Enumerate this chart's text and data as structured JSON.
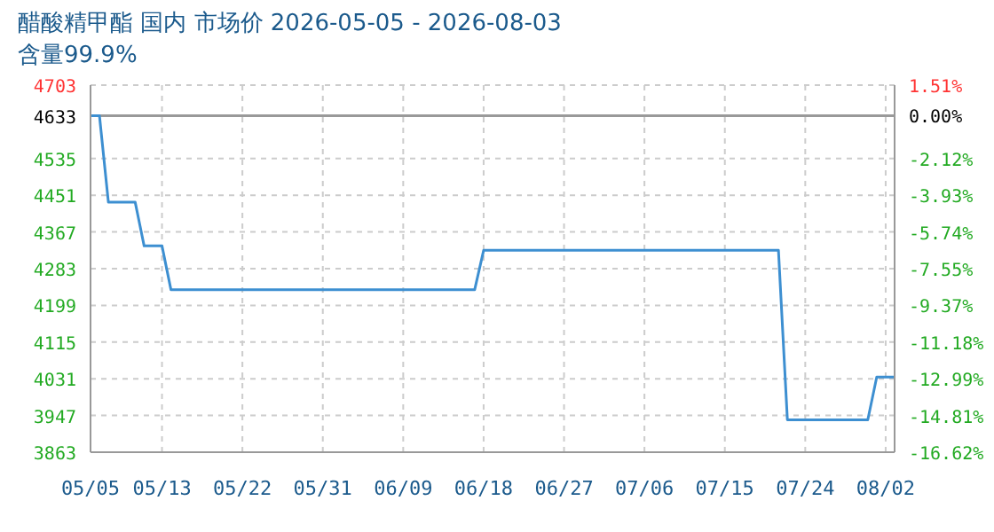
{
  "chart_data": {
    "type": "line",
    "title": "醋酸精甲酯 国内 市场价 2026-05-05 - 2026-08-03",
    "subtitle": "含量99.9%",
    "x": [
      "2026-05-05",
      "2026-05-06",
      "2026-05-07",
      "2026-05-10",
      "2026-05-11",
      "2026-05-13",
      "2026-05-14",
      "2026-06-17",
      "2026-06-18",
      "2026-07-21",
      "2026-07-22",
      "2026-07-31",
      "2026-08-01",
      "2026-08-03"
    ],
    "series": [
      {
        "color": "#3d8fd1",
        "values": [
          4633,
          4633,
          4435,
          4435,
          4335,
          4335,
          4235,
          4235,
          4325,
          4325,
          3937,
          3937,
          4035,
          4035
        ]
      }
    ],
    "xlim": [
      "2026-05-05",
      "2026-08-03"
    ],
    "xticks": [
      {
        "value": "2026-05-05",
        "label": "05/05"
      },
      {
        "value": "2026-05-13",
        "label": "05/13"
      },
      {
        "value": "2026-05-22",
        "label": "05/22"
      },
      {
        "value": "2026-05-31",
        "label": "05/31"
      },
      {
        "value": "2026-06-09",
        "label": "06/09"
      },
      {
        "value": "2026-06-18",
        "label": "06/18"
      },
      {
        "value": "2026-06-27",
        "label": "06/27"
      },
      {
        "value": "2026-07-06",
        "label": "07/06"
      },
      {
        "value": "2026-07-15",
        "label": "07/15"
      },
      {
        "value": "2026-07-24",
        "label": "07/24"
      },
      {
        "value": "2026-08-02",
        "label": "08/02"
      }
    ],
    "ylim": [
      3863,
      4703
    ],
    "yticks": [
      3863,
      3947,
      4031,
      4115,
      4199,
      4283,
      4367,
      4451,
      4535,
      4633,
      4703
    ],
    "y2lim": [
      -16.62,
      1.51
    ],
    "y2ticks": [
      {
        "value": -16.62,
        "label": "-16.62%"
      },
      {
        "value": -14.81,
        "label": "-14.81%"
      },
      {
        "value": -12.99,
        "label": "-12.99%"
      },
      {
        "value": -11.18,
        "label": "-11.18%"
      },
      {
        "value": -9.37,
        "label": "-9.37%"
      },
      {
        "value": -7.55,
        "label": "-7.55%"
      },
      {
        "value": -5.74,
        "label": "-5.74%"
      },
      {
        "value": -3.93,
        "label": "-3.93%"
      },
      {
        "value": -2.12,
        "label": "-2.12%"
      },
      {
        "value": 0,
        "label": "0.00%"
      },
      {
        "value": 1.51,
        "label": "1.51%"
      }
    ],
    "ref_lines": [
      {
        "axis": "y",
        "value": 4633,
        "color": "#999999"
      }
    ],
    "grid": true,
    "marker": "none",
    "line_style": "solid"
  }
}
